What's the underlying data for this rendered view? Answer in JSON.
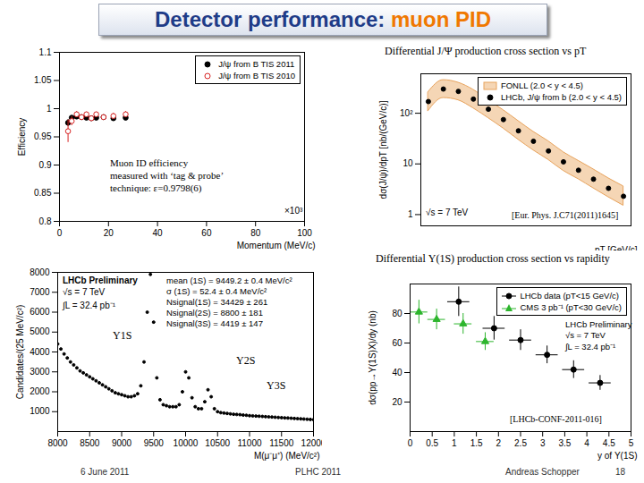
{
  "slide": {
    "title_main": "Detector performance:",
    "title_highlight": "muon PID",
    "footer": [
      "6 June 2011",
      "PLHC 2011",
      "Andreas Schopper",
      "18"
    ]
  },
  "chart_data": [
    {
      "type": "scatter",
      "x_label": "Momentum (MeV/c)",
      "y_label": "Efficiency",
      "xlim": [
        0,
        100
      ],
      "xticks": [
        0,
        20,
        40,
        60,
        80,
        100
      ],
      "ylim": [
        0.8,
        1.1
      ],
      "yticks": [
        0.8,
        0.85,
        0.9,
        0.95,
        1,
        1.05,
        1.1
      ],
      "legend": "top-right",
      "grid": false,
      "annotations": [
        "Muon ID efficiency",
        "measured with ‘tag & probe’",
        "technique: ε=0.9798(6)",
        "×10³"
      ],
      "series": [
        {
          "name": "J/ψ from B TIS 2011",
          "color": "#000000",
          "marker": "dot",
          "x": [
            3.5,
            5,
            7,
            9,
            11,
            13,
            15,
            18,
            22,
            27
          ],
          "values": [
            0.975,
            0.984,
            0.986,
            0.985,
            0.984,
            0.983,
            0.984,
            0.985,
            0.983,
            0.984
          ],
          "yerr": [
            0.006,
            0.003,
            0.002,
            0.002,
            0.002,
            0.002,
            0.002,
            0.002,
            0.002,
            0.003
          ]
        },
        {
          "name": "J/ψ from B TIS 2010",
          "color": "#d62020",
          "marker": "open_circle",
          "x": [
            3.5,
            5,
            7,
            9,
            11,
            13,
            15,
            18,
            22,
            27
          ],
          "values": [
            0.96,
            0.978,
            0.99,
            0.985,
            0.99,
            0.983,
            0.99,
            0.985,
            0.987,
            0.99
          ],
          "yerr": [
            0.02,
            0.008,
            0.005,
            0.004,
            0.004,
            0.004,
            0.004,
            0.004,
            0.005,
            0.005
          ]
        }
      ]
    },
    {
      "type": "scatter",
      "title": "Differential J/Ψ production cross section vs pT",
      "x_label": "pT [GeV/c]",
      "y_label": "dσ(J/ψ)/dpT [nb/(GeV/c)]",
      "log": "y",
      "tick_labels": "y",
      "xlim": [
        0,
        14
      ],
      "ylim": [
        0.6,
        600
      ],
      "yticks": [
        1,
        10,
        {
          "value": 100,
          "label": "10²"
        }
      ],
      "legend": "top-right",
      "grid": false,
      "annotations": [
        "√s = 7 TeV",
        "[Eur. Phys. J.C71(2011)1645]"
      ],
      "series": [
        {
          "name": "FONLL (2.0 < y < 4.5)",
          "type": "band",
          "color": "#e8a35c",
          "x": [
            0.5,
            1.5,
            2.5,
            3.5,
            4.5,
            5.5,
            6.5,
            7.5,
            8.5,
            9.5,
            10.5,
            11.5,
            12.5,
            13.5
          ],
          "lower": [
            110,
            200,
            180,
            125,
            80,
            50,
            30,
            18.5,
            12,
            7.3,
            5,
            3.3,
            2.2,
            1.5
          ],
          "upper": [
            260,
            450,
            400,
            290,
            180,
            115,
            70,
            43,
            28,
            17,
            11.5,
            7.8,
            5.2,
            3.6
          ]
        },
        {
          "name": "LHCb, J/ψ from b (2.0 < y < 4.5)",
          "color": "#000000",
          "marker": "dot",
          "x": [
            0.5,
            1.5,
            2.5,
            3.5,
            4.5,
            5.5,
            6.5,
            7.5,
            8.5,
            9.5,
            10.5,
            11.5,
            12.5,
            13.5
          ],
          "values": [
            170,
            300,
            270,
            190,
            120,
            75,
            45,
            28,
            18,
            11,
            7.5,
            5,
            3.3,
            2.3
          ]
        }
      ]
    },
    {
      "type": "scatter",
      "x_label": "M(μ⁻μ⁺) (MeV/c²)",
      "y_label": "Candidates/(25 MeV/c²)",
      "xlim": [
        8000,
        12000
      ],
      "xticks": [
        8000,
        8500,
        9000,
        9500,
        10000,
        10500,
        11000,
        11500,
        12000
      ],
      "ylim": [
        0,
        8000
      ],
      "yticks": [
        1000,
        2000,
        3000,
        4000,
        5000,
        6000,
        7000,
        8000
      ],
      "grid": false,
      "annotations": [
        "LHCb Preliminary",
        "√s = 7 TeV",
        "∫L = 32.4 pb⁻¹",
        "mean (1S) = 9449.2 ± 0.4 MeV/c²",
        "σ (1S) = 52.4 ± 0.4 MeV/c²",
        "Nsignal(1S) = 34429 ± 261",
        "Nsignal(2S) = 8800 ± 181",
        "Nsignal(3S) = 4419 ± 147",
        "Υ1S",
        "Υ2S",
        "Υ3S"
      ],
      "series": [
        {
          "name": "LHCb data",
          "color": "#000000",
          "marker": "dot",
          "x": [
            8000,
            8050,
            8100,
            8150,
            8200,
            8250,
            8300,
            8350,
            8400,
            8450,
            8500,
            8550,
            8600,
            8650,
            8700,
            8750,
            8800,
            8850,
            8900,
            8950,
            9000,
            9050,
            9100,
            9150,
            9200,
            9250,
            9300,
            9350,
            9400,
            9450,
            9500,
            9550,
            9600,
            9650,
            9700,
            9750,
            9800,
            9850,
            9900,
            9950,
            10000,
            10050,
            10100,
            10150,
            10200,
            10250,
            10300,
            10350,
            10400,
            10450,
            10500,
            10550,
            10600,
            10650,
            10700,
            10750,
            10800,
            10850,
            10900,
            10950,
            11000,
            11050,
            11100,
            11150,
            11200,
            11250,
            11300,
            11350,
            11400,
            11450,
            11500,
            11550,
            11600,
            11650,
            11700,
            11750,
            11800,
            11850,
            11900,
            11950,
            12000
          ],
          "values": [
            4400,
            4150,
            3900,
            3700,
            3500,
            3350,
            3200,
            3050,
            2950,
            2850,
            2750,
            2650,
            2550,
            2450,
            2350,
            2250,
            2150,
            2050,
            1950,
            1900,
            1850,
            1800,
            1750,
            1750,
            1800,
            1900,
            2300,
            3500,
            6000,
            7900,
            5500,
            2700,
            1600,
            1350,
            1300,
            1250,
            1250,
            1250,
            1350,
            2000,
            3000,
            2700,
            1700,
            1250,
            1150,
            1150,
            1500,
            2100,
            1750,
            1150,
            1000,
            950,
            930,
            910,
            890,
            870,
            860,
            850,
            830,
            820,
            800,
            790,
            780,
            770,
            760,
            750,
            740,
            730,
            720,
            710,
            700,
            690,
            680,
            670,
            660,
            650,
            640,
            630,
            620,
            610,
            600
          ]
        }
      ]
    },
    {
      "type": "scatter",
      "title": "Differential Υ(1S) production cross section vs rapidity",
      "x_label": "y of Υ(1S)",
      "y_label": "dσ(pp→Υ(1S)X)/dy (nb)",
      "xlim": [
        0,
        5
      ],
      "xticks": [
        0,
        0.5,
        1,
        1.5,
        2,
        2.5,
        3,
        3.5,
        4,
        4.5,
        5
      ],
      "ylim": [
        0,
        100
      ],
      "yticks": [
        20,
        40,
        60,
        80
      ],
      "legend": "top-right",
      "grid": false,
      "annotations": [
        "LHCb Preliminary",
        "√s = 7 TeV",
        "∫L = 32.4 pb⁻¹",
        "[LHCb-CONF-2011-016]"
      ],
      "series": [
        {
          "name": "LHCb data (pT<15 GeV/c)",
          "color": "#000000",
          "marker": "dot",
          "x": [
            1.1,
            1.9,
            2.5,
            3.1,
            3.7,
            4.3
          ],
          "values": [
            88,
            70,
            62,
            52,
            42,
            33
          ],
          "yerr": [
            10,
            8,
            7,
            6,
            6,
            5
          ],
          "xerr": [
            0.25,
            0.25,
            0.25,
            0.25,
            0.25,
            0.25
          ]
        },
        {
          "name": "CMS 3 pb⁻¹ (pT<30 GeV/c)",
          "color": "#2db52d",
          "marker": "triangle",
          "x": [
            0.2,
            0.6,
            1.2,
            1.7
          ],
          "values": [
            81,
            76,
            73,
            61
          ],
          "yerr": [
            8,
            7,
            7,
            6
          ],
          "xerr": [
            0.2,
            0.2,
            0.2,
            0.2
          ]
        }
      ]
    }
  ]
}
